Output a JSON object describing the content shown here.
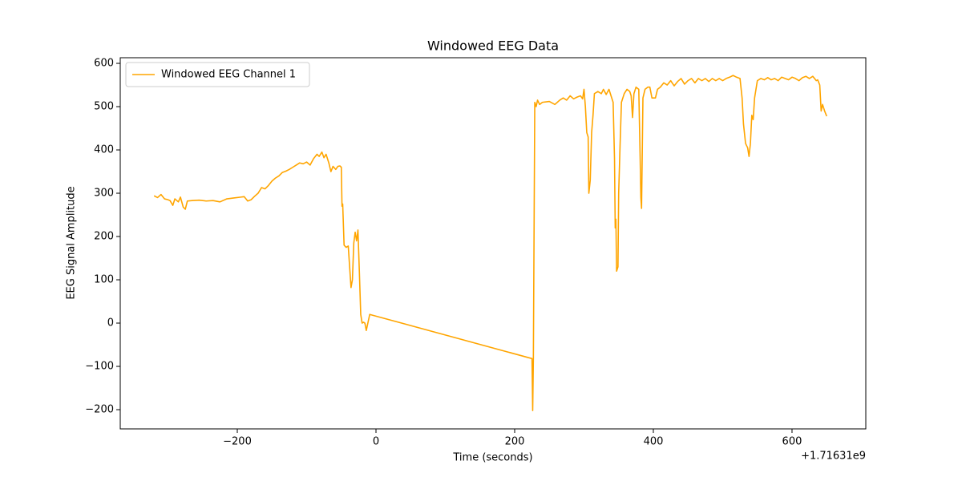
{
  "chart_data": {
    "type": "line",
    "title": "Windowed EEG Data",
    "x_label": "Time (seconds)",
    "y_label": "EEG Signal Amplitude",
    "x_offset_label": "+1.71631e9",
    "xlim": [
      -368.8,
      706.4
    ],
    "ylim": [
      -244.4,
      613
    ],
    "xticks": [
      {
        "value": -200,
        "label": "−200"
      },
      0,
      200,
      400,
      600
    ],
    "yticks": [
      {
        "value": -200,
        "label": "−200"
      },
      {
        "value": -100,
        "label": "−100"
      },
      0,
      100,
      200,
      300,
      400,
      500,
      600
    ],
    "grid": false,
    "legend": "upper left",
    "x": [
      -320,
      -315,
      -310,
      -305,
      -300,
      -297,
      -293,
      -290,
      -285,
      -282,
      -278,
      -275,
      -272,
      -265,
      -255,
      -245,
      -235,
      -225,
      -215,
      -205,
      -195,
      -190,
      -185,
      -180,
      -175,
      -170,
      -165,
      -160,
      -155,
      -150,
      -145,
      -140,
      -135,
      -130,
      -125,
      -120,
      -115,
      -110,
      -105,
      -100,
      -95,
      -90,
      -85,
      -82,
      -78,
      -75,
      -72,
      -68,
      -65,
      -62,
      -58,
      -55,
      -52,
      -50,
      -49,
      -48,
      -46,
      -43,
      -40,
      -38,
      -36,
      -34,
      -32,
      -30,
      -28,
      -26,
      -24,
      -22,
      -20,
      -18,
      -16,
      -14,
      -9,
      225,
      226,
      227,
      229,
      231,
      233,
      236,
      240,
      250,
      258,
      265,
      270,
      275,
      280,
      285,
      290,
      295,
      298,
      300,
      302,
      304,
      306,
      307,
      309,
      311,
      313,
      315,
      320,
      325,
      328,
      332,
      336,
      340,
      342,
      344,
      345,
      346,
      347,
      349,
      350,
      352,
      354,
      358,
      362,
      366,
      368,
      370,
      372,
      375,
      379,
      381,
      382,
      383,
      385,
      388,
      392,
      395,
      398,
      403,
      406,
      410,
      415,
      420,
      425,
      430,
      435,
      440,
      445,
      450,
      455,
      460,
      465,
      470,
      475,
      480,
      485,
      490,
      495,
      500,
      505,
      510,
      515,
      520,
      525,
      528,
      530,
      533,
      536,
      538,
      540,
      542,
      544,
      546,
      550,
      555,
      560,
      565,
      570,
      575,
      580,
      585,
      590,
      595,
      600,
      605,
      610,
      615,
      620,
      625,
      630,
      635,
      637,
      640,
      642,
      644,
      647,
      650
    ],
    "series": [
      {
        "name": "Windowed EEG Channel 1",
        "color": "#ffa500",
        "values": [
          294,
          290,
          297,
          287,
          285,
          283,
          272,
          287,
          280,
          291,
          268,
          263,
          282,
          283,
          284,
          282,
          283,
          280,
          287,
          289,
          291,
          292,
          282,
          285,
          293,
          300,
          313,
          310,
          318,
          328,
          335,
          340,
          348,
          351,
          355,
          360,
          365,
          370,
          368,
          372,
          365,
          380,
          390,
          385,
          395,
          382,
          390,
          370,
          350,
          362,
          355,
          362,
          363,
          360,
          270,
          275,
          180,
          175,
          178,
          130,
          82,
          100,
          185,
          210,
          190,
          215,
          120,
          20,
          0,
          2,
          0,
          -17,
          20,
          -82,
          -202,
          -80,
          510,
          500,
          515,
          505,
          510,
          512,
          505,
          515,
          520,
          515,
          525,
          518,
          522,
          525,
          518,
          540,
          500,
          440,
          430,
          300,
          330,
          440,
          480,
          530,
          535,
          530,
          540,
          528,
          540,
          520,
          510,
          380,
          220,
          240,
          120,
          130,
          300,
          410,
          510,
          530,
          540,
          535,
          525,
          475,
          530,
          545,
          540,
          380,
          290,
          265,
          520,
          540,
          545,
          545,
          520,
          520,
          540,
          545,
          555,
          550,
          560,
          548,
          558,
          565,
          552,
          560,
          565,
          555,
          565,
          560,
          565,
          558,
          565,
          560,
          565,
          560,
          565,
          568,
          572,
          568,
          565,
          520,
          460,
          415,
          405,
          385,
          415,
          480,
          470,
          520,
          560,
          565,
          562,
          567,
          562,
          565,
          560,
          568,
          565,
          562,
          568,
          565,
          560,
          567,
          570,
          565,
          570,
          560,
          562,
          550,
          490,
          505,
          490,
          478
        ]
      }
    ]
  }
}
